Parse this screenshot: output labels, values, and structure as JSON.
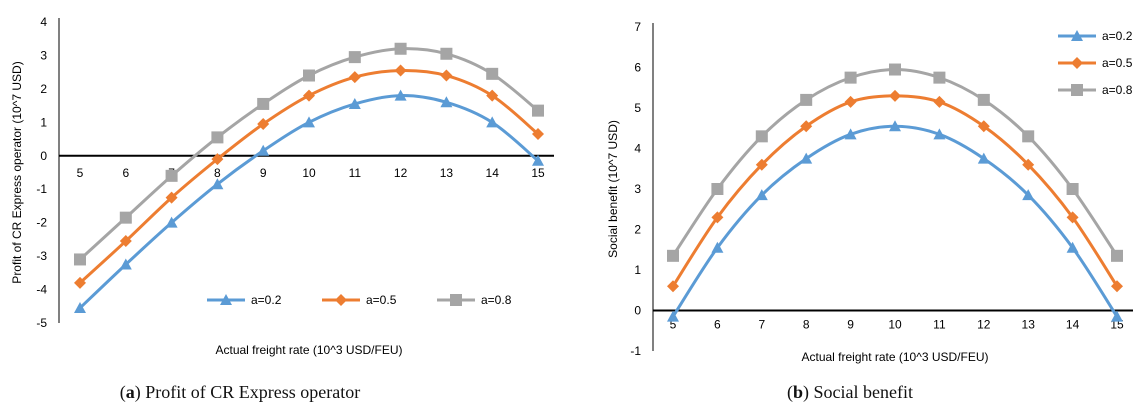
{
  "chart_data": [
    {
      "type": "line",
      "caption_letter": "a",
      "caption_text": "Profit of CR Express operator",
      "xlabel": "Actual freight rate (10^3 USD/FEU)",
      "ylabel": "Profit of CR Express operator (10^7 USD)",
      "xlim": [
        5,
        15
      ],
      "ylim": [
        -5,
        4
      ],
      "x": [
        5,
        6,
        7,
        8,
        9,
        10,
        11,
        12,
        13,
        14,
        15
      ],
      "yticks": [
        "-5",
        "-4",
        "-3",
        "-2",
        "-1",
        "0",
        "1",
        "2",
        "3",
        "4"
      ],
      "xticks": [
        "5",
        "6",
        "7",
        "8",
        "9",
        "10",
        "11",
        "12",
        "13",
        "14",
        "15"
      ],
      "legend_position": "bottom-right",
      "series": [
        {
          "name": "a=0.2",
          "color": "#5B9BD5",
          "marker": "triangle",
          "values": [
            -4.55,
            -3.25,
            -2.0,
            -0.85,
            0.15,
            1.0,
            1.55,
            1.8,
            1.6,
            1.0,
            -0.15
          ]
        },
        {
          "name": "a=0.5",
          "color": "#ED7D31",
          "marker": "diamond",
          "values": [
            -3.8,
            -2.55,
            -1.25,
            -0.1,
            0.95,
            1.8,
            2.35,
            2.55,
            2.4,
            1.8,
            0.65
          ]
        },
        {
          "name": "a=0.8",
          "color": "#A5A5A5",
          "marker": "square",
          "values": [
            -3.1,
            -1.85,
            -0.6,
            0.55,
            1.55,
            2.4,
            2.95,
            3.2,
            3.05,
            2.45,
            1.35
          ]
        }
      ]
    },
    {
      "type": "line",
      "caption_letter": "b",
      "caption_text": "Social benefit",
      "xlabel": "Actual freight rate (10^3 USD/FEU)",
      "ylabel": "Social benefit  (10^7 USD)",
      "xlim": [
        5,
        15
      ],
      "ylim": [
        -1,
        7
      ],
      "x": [
        5,
        6,
        7,
        8,
        9,
        10,
        11,
        12,
        13,
        14,
        15
      ],
      "yticks": [
        "-1",
        "0",
        "1",
        "2",
        "3",
        "4",
        "5",
        "6",
        "7"
      ],
      "xticks": [
        "5",
        "6",
        "7",
        "8",
        "9",
        "10",
        "11",
        "12",
        "13",
        "14",
        "15"
      ],
      "legend_position": "top-right",
      "series": [
        {
          "name": "a=0.2",
          "color": "#5B9BD5",
          "marker": "triangle",
          "values": [
            -0.15,
            1.55,
            2.85,
            3.75,
            4.35,
            4.55,
            4.35,
            3.75,
            2.85,
            1.55,
            -0.15
          ]
        },
        {
          "name": "a=0.5",
          "color": "#ED7D31",
          "marker": "diamond",
          "values": [
            0.6,
            2.3,
            3.6,
            4.55,
            5.15,
            5.3,
            5.15,
            4.55,
            3.6,
            2.3,
            0.6
          ]
        },
        {
          "name": "a=0.8",
          "color": "#A5A5A5",
          "marker": "square",
          "values": [
            1.35,
            3.0,
            4.3,
            5.2,
            5.75,
            5.95,
            5.75,
            5.2,
            4.3,
            3.0,
            1.35
          ]
        }
      ]
    }
  ]
}
